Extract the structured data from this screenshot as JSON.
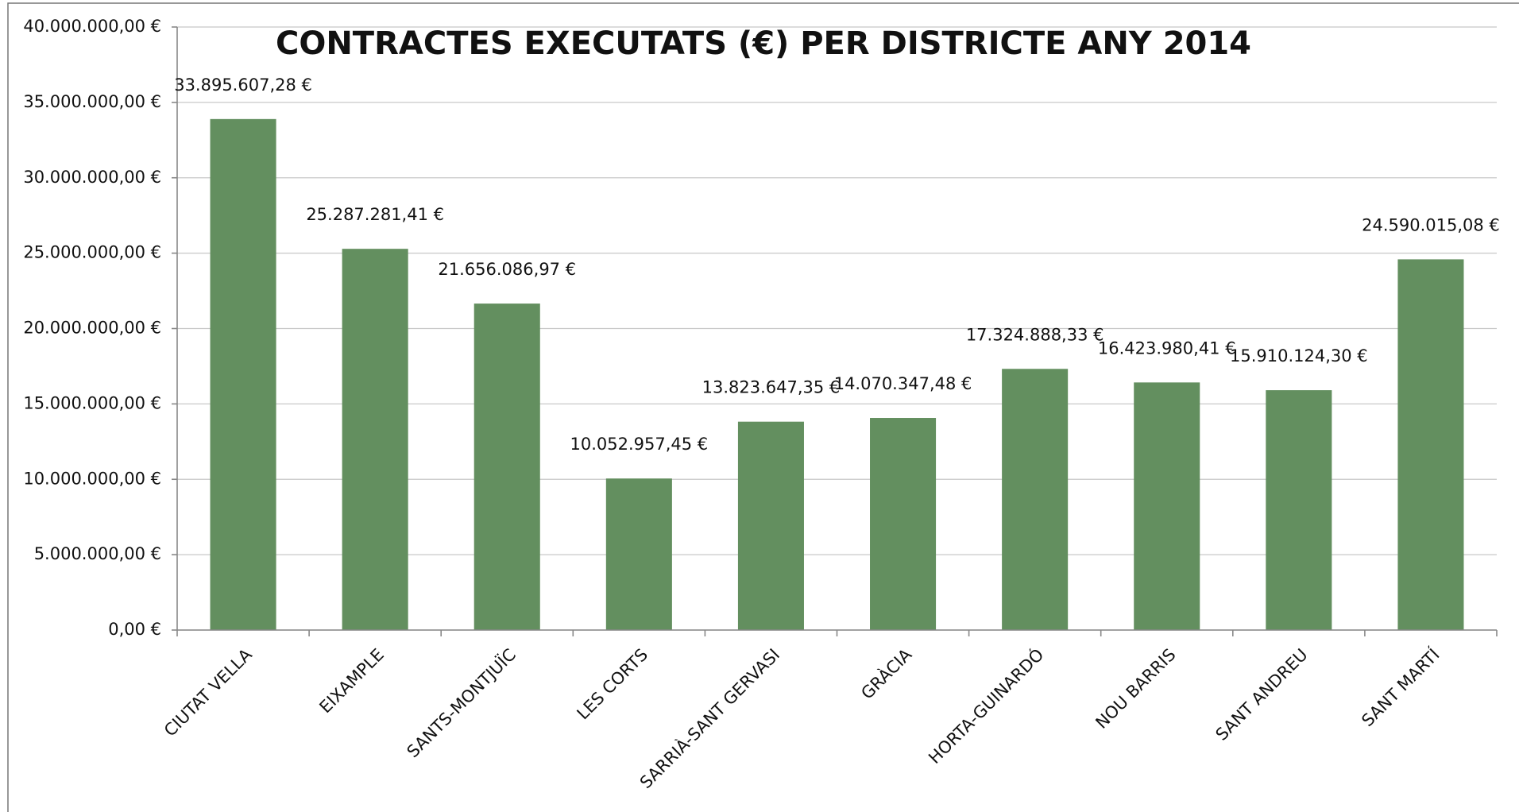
{
  "chart_data": {
    "type": "bar",
    "title": "CONTRACTES EXECUTATS (€) PER DISTRICTE ANY 2014",
    "categories": [
      "CIUTAT VELLA",
      "EIXAMPLE",
      "SANTS-MONTJUÏC",
      "LES CORTS",
      "SARRIÀ-SANT GERVASI",
      "GRÀCIA",
      "HORTA-GUINARDÓ",
      "NOU BARRIS",
      "SANT ANDREU",
      "SANT MARTÍ"
    ],
    "values": [
      33895607.28,
      25287281.41,
      21656086.97,
      10052957.45,
      13823647.35,
      14070347.48,
      17324888.33,
      16423980.41,
      15910124.3,
      24590015.08
    ],
    "value_labels": [
      "33.895.607,28 €",
      "25.287.281,41 €",
      "21.656.086,97 €",
      "10.052.957,45 €",
      "13.823.647,35 €",
      "14.070.347,48 €",
      "17.324.888,33 €",
      "16.423.980,41 €",
      "15.910.124,30 €",
      "24.590.015,08 €"
    ],
    "color": "#638f5f",
    "ylim": [
      0,
      40000000
    ],
    "yticks": [
      {
        "value": 0,
        "label": "0,00 €"
      },
      {
        "value": 5000000,
        "label": "5.000.000,00 €"
      },
      {
        "value": 10000000,
        "label": "10.000.000,00 €"
      },
      {
        "value": 15000000,
        "label": "15.000.000,00 €"
      },
      {
        "value": 20000000,
        "label": "20.000.000,00 €"
      },
      {
        "value": 25000000,
        "label": "25.000.000,00 €"
      },
      {
        "value": 30000000,
        "label": "30.000.000,00 €"
      },
      {
        "value": 35000000,
        "label": "35.000.000,00 €"
      },
      {
        "value": 40000000,
        "label": "40.000.000,00 €"
      }
    ],
    "grid": true
  }
}
